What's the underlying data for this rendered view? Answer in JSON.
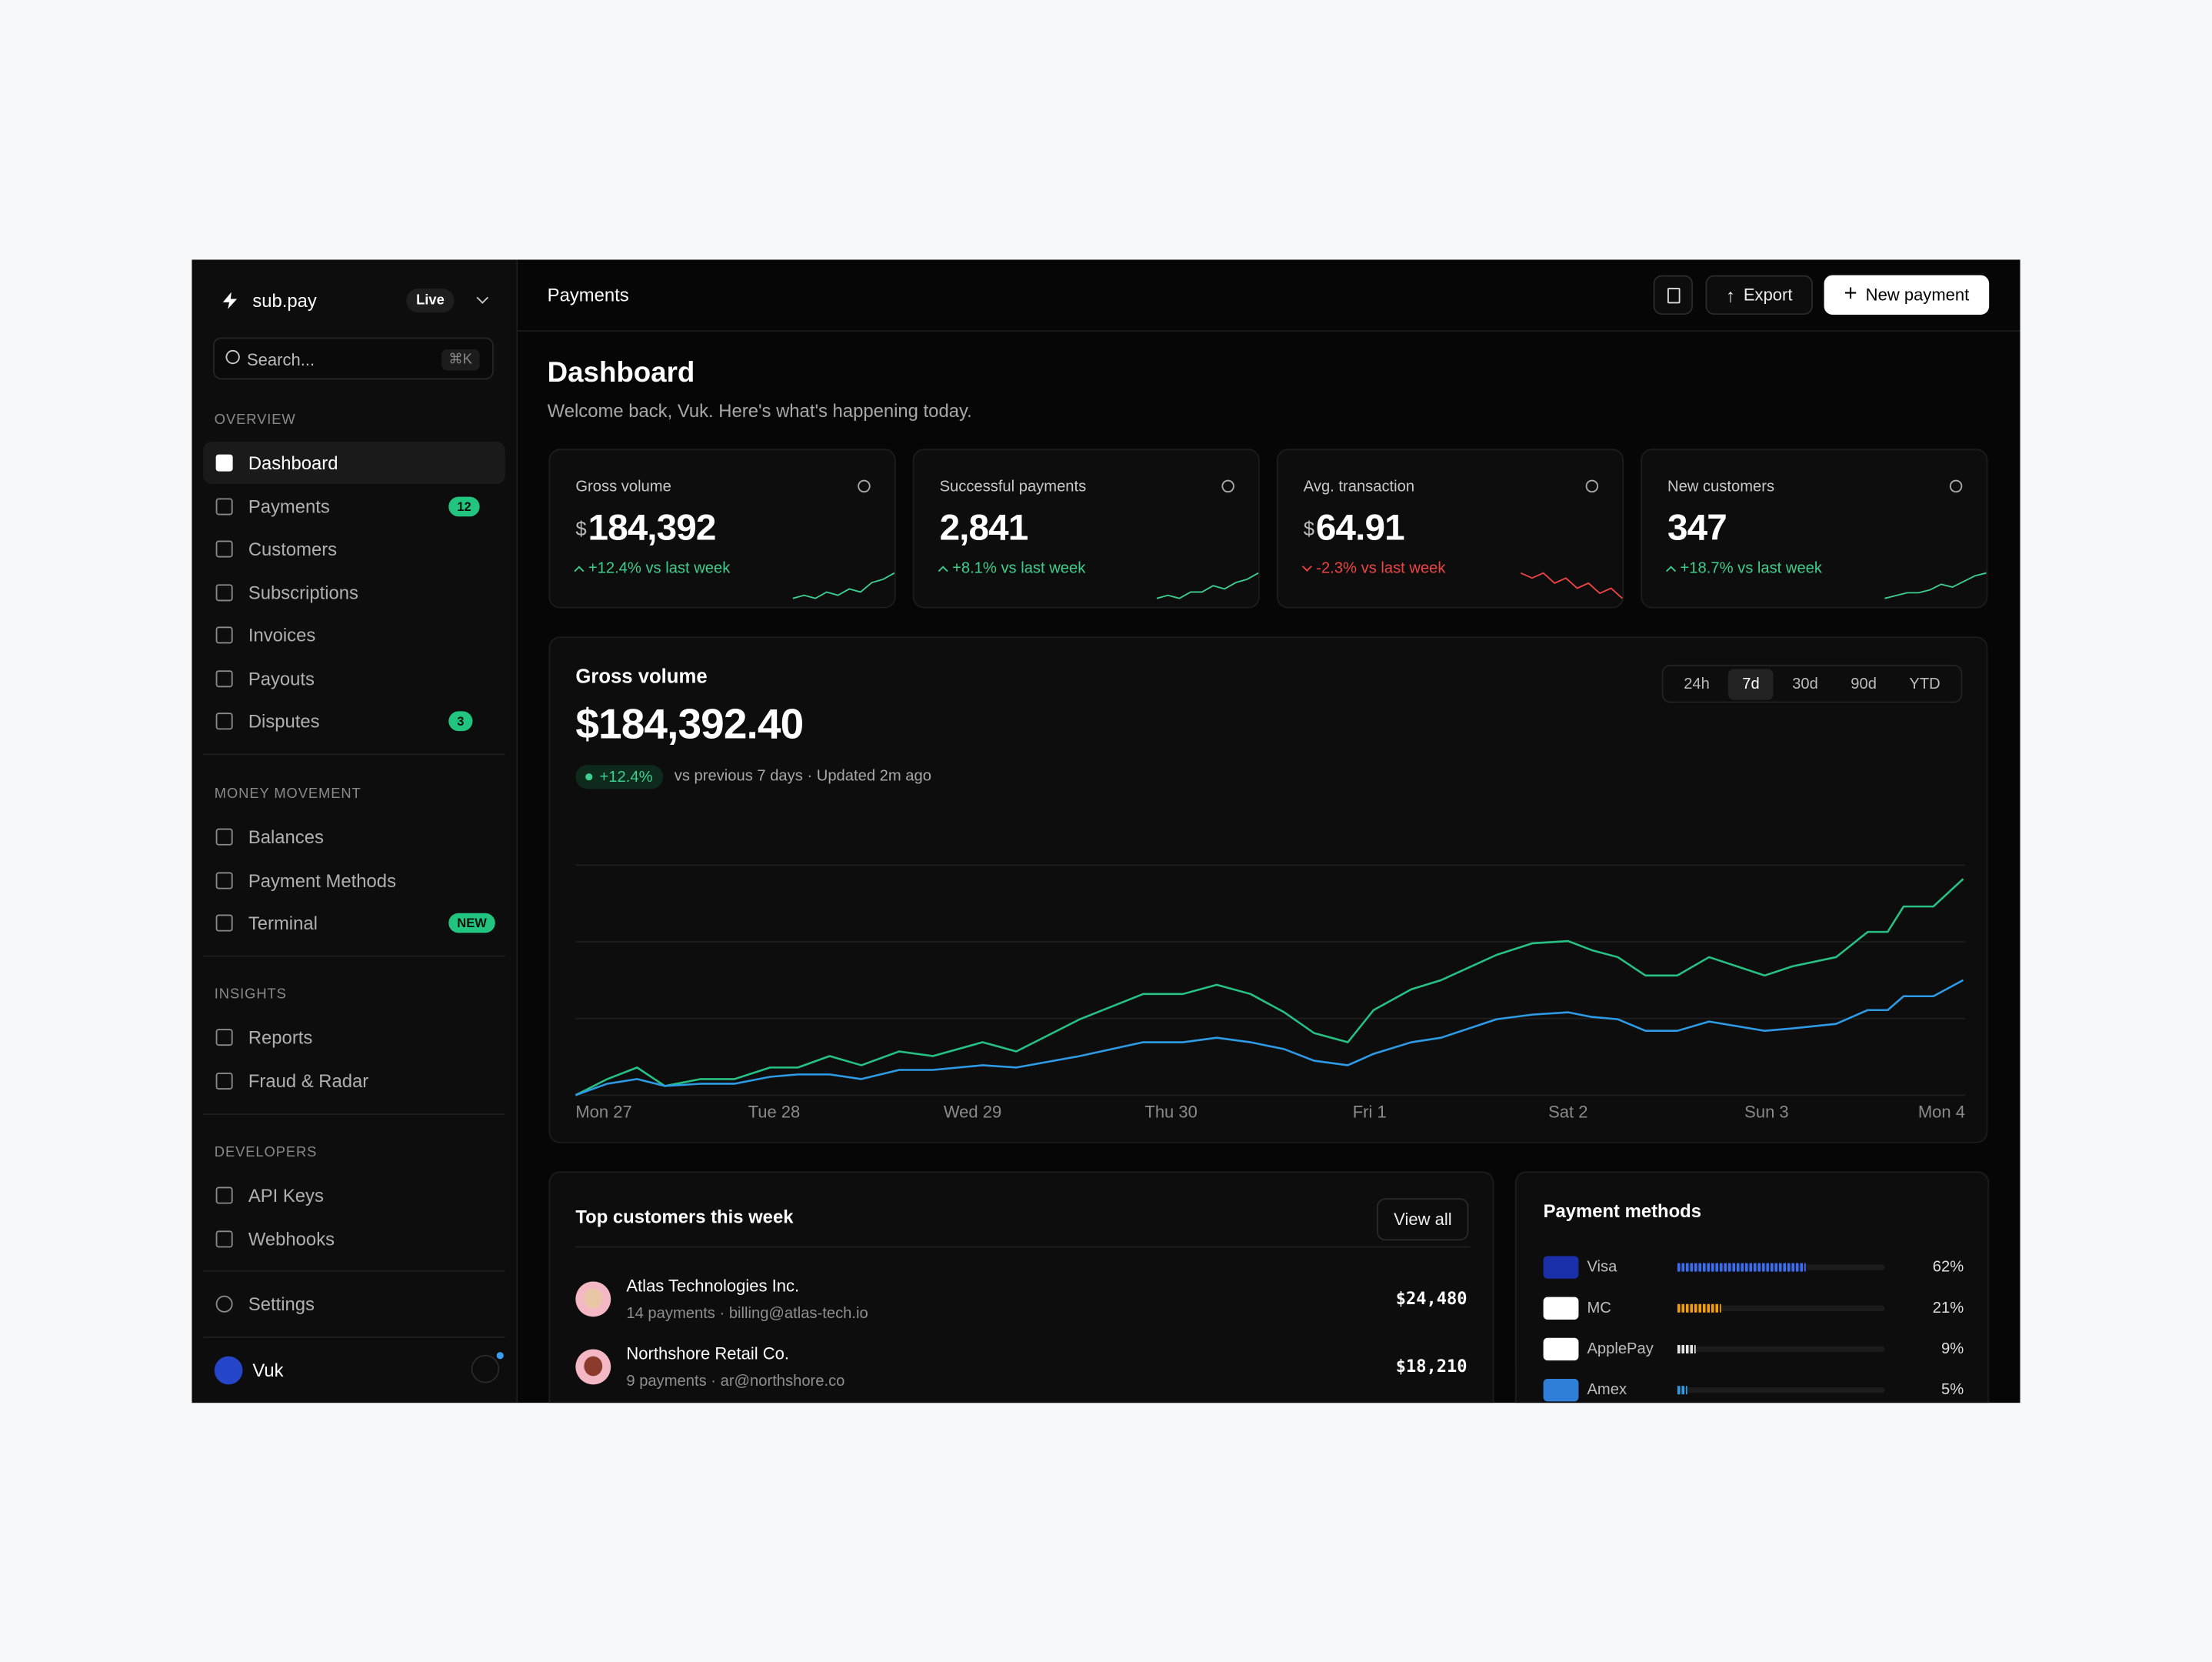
{
  "sidebar": {
    "brand": "sub.pay",
    "env": "Live",
    "search": "Search...",
    "search_shortcut": "⌘K",
    "sections": [
      {
        "title": "OVERVIEW",
        "items": [
          {
            "label": "Dashboard",
            "active": true
          },
          {
            "label": "Payments",
            "badge": "12"
          },
          {
            "label": "Customers"
          },
          {
            "label": "Subscriptions"
          },
          {
            "label": "Invoices"
          },
          {
            "label": "Payouts"
          },
          {
            "label": "Disputes",
            "badge": "3"
          }
        ]
      },
      {
        "title": "MONEY MOVEMENT",
        "items": [
          {
            "label": "Balances"
          },
          {
            "label": "Payment Methods"
          },
          {
            "label": "Terminal",
            "badge": "NEW"
          }
        ]
      },
      {
        "title": "INSIGHTS",
        "items": [
          {
            "label": "Reports"
          },
          {
            "label": "Fraud & Radar"
          }
        ]
      },
      {
        "title": "DEVELOPERS",
        "items": [
          {
            "label": "API Keys"
          },
          {
            "label": "Webhooks"
          }
        ]
      }
    ],
    "settings": "Settings",
    "user": "Vuk"
  },
  "header": {
    "title": "Payments",
    "export": "Export",
    "new_payment": "New payment"
  },
  "page": {
    "title": "Dashboard",
    "subtitle": "Welcome back, Vuk. Here's what's happening today."
  },
  "kpis": [
    {
      "label": "Gross volume",
      "prefix": "$",
      "value": "184,392",
      "change": "+12.4% vs last week",
      "trend": "up",
      "spark": [
        2,
        3,
        2,
        4,
        3,
        5,
        4,
        7,
        8,
        10
      ]
    },
    {
      "label": "Successful payments",
      "value": "2,841",
      "change": "+8.1% vs last week",
      "trend": "up",
      "spark": [
        2,
        3,
        2,
        4,
        4,
        6,
        5,
        7,
        8,
        10
      ]
    },
    {
      "label": "Avg. transaction",
      "prefix": "$",
      "value": "64.91",
      "change": "-2.3% vs last week",
      "trend": "down",
      "spark": [
        8,
        7,
        8,
        6,
        7,
        5,
        6,
        4,
        5,
        3
      ]
    },
    {
      "label": "New customers",
      "value": "347",
      "change": "+18.7% vs last week",
      "trend": "up",
      "spark": [
        1,
        2,
        3,
        3,
        4,
        6,
        5,
        7,
        9,
        10
      ]
    }
  ],
  "chart_data": {
    "type": "line",
    "title": "Gross volume",
    "total": "$184,392.40",
    "change": "+12.4%",
    "note": "vs previous 7 days · Updated 2m ago",
    "ranges": [
      "24h",
      "7d",
      "30d",
      "90d",
      "YTD"
    ],
    "active_range": "7d",
    "x": [
      0,
      0.16,
      0.31,
      0.45,
      0.63,
      0.8,
      0.98,
      1.12,
      1.28,
      1.44,
      1.63,
      1.8,
      2.05,
      2.22,
      2.54,
      2.86,
      3.06,
      3.23,
      3.4,
      3.57,
      3.72,
      3.89,
      4.02,
      4.21,
      4.36,
      4.64,
      4.82,
      5.0,
      5.12,
      5.25,
      5.39,
      5.55,
      5.71,
      5.99,
      6.13,
      6.35,
      6.51,
      6.61,
      6.69,
      6.84,
      6.99
    ],
    "xlim": [
      0,
      7
    ],
    "xticks": [
      {
        "value": 0,
        "label": "Mon 27"
      },
      {
        "value": 1,
        "label": "Tue 28"
      },
      {
        "value": 2,
        "label": "Wed 29"
      },
      {
        "value": 3,
        "label": "Thu 30"
      },
      {
        "value": 4,
        "label": "Fri 1"
      },
      {
        "value": 5,
        "label": "Sat 2"
      },
      {
        "value": 6,
        "label": "Sun 3"
      },
      {
        "value": 7,
        "label": "Mon 4"
      }
    ],
    "ylim": [
      0,
      100
    ],
    "grid": true,
    "series": [
      {
        "color": "#27c184",
        "values": [
          0,
          7,
          12,
          4,
          7,
          7,
          12,
          12,
          17,
          13,
          19,
          17,
          23,
          19,
          33,
          44,
          44,
          48,
          44,
          36,
          27,
          23,
          37,
          46,
          50,
          61,
          66,
          67,
          63,
          60,
          52,
          52,
          60,
          52,
          56,
          60,
          71,
          71,
          82,
          82,
          94
        ]
      },
      {
        "color": "#2e9be6",
        "values": [
          0,
          5,
          7,
          4,
          5,
          5,
          8,
          9,
          9,
          7,
          11,
          11,
          13,
          12,
          17,
          23,
          23,
          25,
          23,
          20,
          15,
          13,
          18,
          23,
          25,
          33,
          35,
          36,
          34,
          33,
          28,
          28,
          32,
          28,
          29,
          31,
          37,
          37,
          43,
          43,
          50
        ]
      }
    ]
  },
  "customers": {
    "title": "Top customers this week",
    "view_all": "View all",
    "rows": [
      {
        "name": "Atlas Technologies Inc.",
        "detail": "14 payments · billing@atlas-tech.io",
        "amount": "$24,480"
      },
      {
        "name": "Northshore Retail Co.",
        "detail": "9 payments · ar@northshore.co",
        "amount": "$18,210"
      }
    ]
  },
  "payment_methods": {
    "type": "bar",
    "title": "Payment methods",
    "categories": [
      "Visa",
      "MC",
      "ApplePay",
      "Amex"
    ],
    "values": [
      62,
      21,
      9,
      5
    ],
    "value_labels": [
      "62%",
      "21%",
      "9%",
      "5%"
    ],
    "colors": [
      "#3b6cf6",
      "#f59e0b",
      "#e5e5e5",
      "#2e9be6"
    ],
    "xlim": [
      0,
      100
    ]
  }
}
